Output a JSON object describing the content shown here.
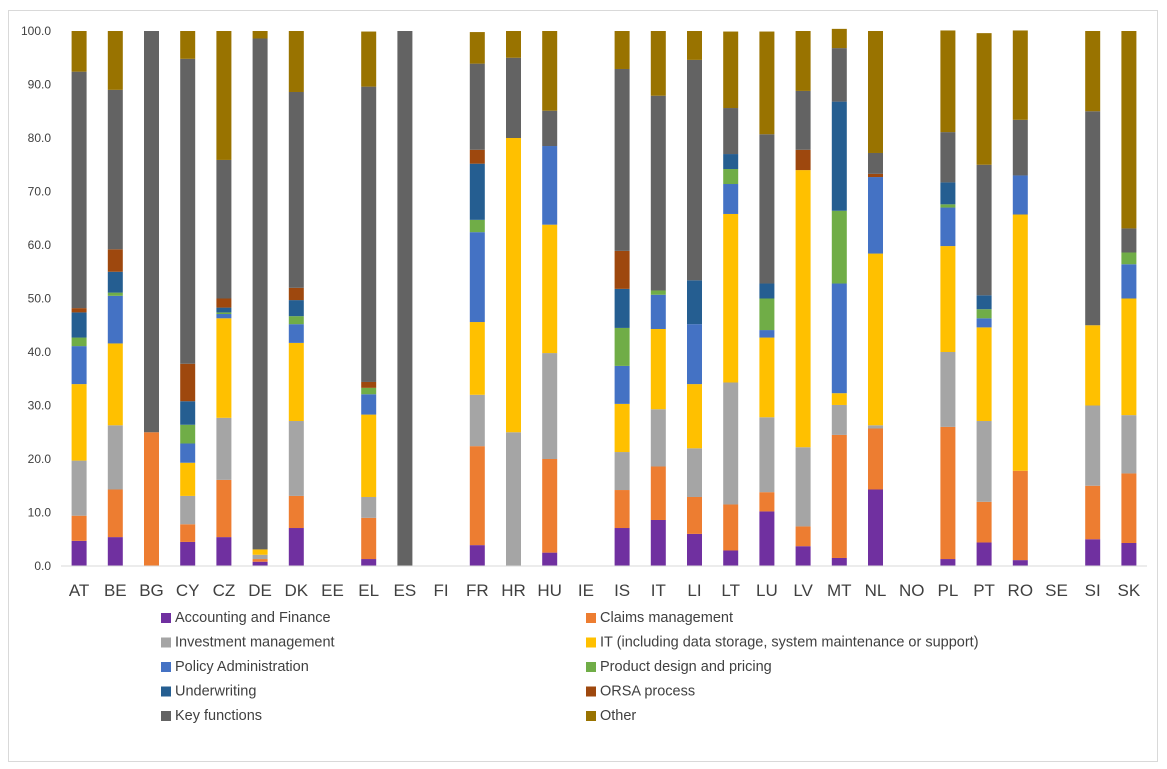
{
  "chart_data": {
    "type": "bar",
    "stacked": true,
    "title": "",
    "xlabel": "",
    "ylabel": "",
    "ylim": [
      0,
      100
    ],
    "ytick_step": 10,
    "ytick_labels": [
      "0.0",
      "10.0",
      "20.0",
      "30.0",
      "40.0",
      "50.0",
      "60.0",
      "70.0",
      "80.0",
      "90.0",
      "100.0"
    ],
    "grid": false,
    "legend_position": "bottom",
    "categories": [
      "AT",
      "BE",
      "BG",
      "CY",
      "CZ",
      "DE",
      "DK",
      "EE",
      "EL",
      "ES",
      "FI",
      "FR",
      "HR",
      "HU",
      "IE",
      "IS",
      "IT",
      "LI",
      "LT",
      "LU",
      "LV",
      "MT",
      "NL",
      "NO",
      "PL",
      "PT",
      "RO",
      "SE",
      "SI",
      "SK"
    ],
    "series": [
      {
        "name": "Accounting and Finance",
        "color": "#7030a0",
        "values": [
          4.7,
          5.4,
          0,
          4.5,
          5.4,
          0.8,
          7.1,
          0,
          1.3,
          0,
          0,
          3.9,
          0,
          2.5,
          0,
          7.1,
          8.6,
          6.0,
          2.9,
          10.2,
          3.7,
          1.5,
          14.3,
          0,
          1.3,
          4.4,
          1.1,
          0,
          5.0,
          4.3
        ]
      },
      {
        "name": "Claims management",
        "color": "#ed7d31",
        "values": [
          4.7,
          8.9,
          25.0,
          3.3,
          10.7,
          0.5,
          6.0,
          0,
          7.7,
          0,
          0,
          18.5,
          0,
          17.5,
          0,
          7.1,
          10.0,
          6.9,
          8.6,
          3.6,
          3.7,
          23.0,
          11.4,
          0,
          24.7,
          7.6,
          16.7,
          0,
          10.0,
          13.0
        ]
      },
      {
        "name": "Investment management",
        "color": "#a5a5a5",
        "values": [
          10.3,
          12.0,
          0,
          5.3,
          11.6,
          0.8,
          14.0,
          0,
          3.9,
          0,
          0,
          9.6,
          25.0,
          19.8,
          0,
          7.1,
          10.7,
          9.1,
          22.8,
          14.0,
          14.8,
          5.6,
          0.6,
          0,
          14.0,
          15.1,
          0,
          0,
          15.0,
          10.9
        ]
      },
      {
        "name": "IT (including data storage, system maintenance or support)",
        "color": "#ffc000",
        "values": [
          14.3,
          15.3,
          0,
          6.2,
          18.6,
          1.0,
          14.6,
          0,
          15.4,
          0,
          0,
          13.6,
          55.0,
          24.0,
          0,
          9.0,
          15.0,
          12.0,
          31.5,
          14.9,
          51.8,
          2.2,
          32.1,
          0,
          19.8,
          17.5,
          47.9,
          0,
          15.0,
          21.8
        ]
      },
      {
        "name": "Policy Administration",
        "color": "#4472c4",
        "values": [
          7.1,
          8.9,
          0,
          3.6,
          0.8,
          0,
          3.5,
          0,
          3.8,
          0,
          0,
          16.8,
          0,
          14.7,
          0,
          7.1,
          6.4,
          11.2,
          5.6,
          1.4,
          0,
          20.5,
          14.3,
          0,
          7.2,
          1.7,
          7.3,
          0,
          0,
          6.4
        ]
      },
      {
        "name": "Product design and pricing",
        "color": "#70ad47",
        "values": [
          1.6,
          0.6,
          0,
          3.5,
          0.3,
          0,
          1.5,
          0,
          1.2,
          0,
          0,
          2.3,
          0,
          0,
          0,
          7.1,
          0.8,
          0,
          2.8,
          5.9,
          0,
          13.6,
          0,
          0,
          0.6,
          1.7,
          0,
          0,
          0,
          2.2
        ]
      },
      {
        "name": "Underwriting",
        "color": "#255e91",
        "values": [
          4.7,
          3.9,
          0,
          4.4,
          0.9,
          0,
          3.0,
          0,
          0,
          0,
          0,
          10.5,
          0,
          0,
          0,
          7.3,
          0,
          8.2,
          2.8,
          2.8,
          0,
          20.4,
          0,
          0,
          4.1,
          2.6,
          0,
          0,
          0,
          0
        ]
      },
      {
        "name": "ORSA process",
        "color": "#9e480e",
        "values": [
          0.8,
          4.2,
          0,
          7.0,
          1.7,
          0,
          2.3,
          0,
          1.1,
          0,
          0,
          2.6,
          0,
          0,
          0,
          7.1,
          0,
          0,
          0,
          0,
          3.8,
          0,
          0.6,
          0,
          0,
          0,
          0,
          0,
          0,
          0
        ]
      },
      {
        "name": "Key functions",
        "color": "#636363",
        "values": [
          44.2,
          29.8,
          75.0,
          57.0,
          25.9,
          95.5,
          36.6,
          0,
          55.2,
          100.0,
          0,
          16.1,
          15.0,
          6.6,
          0,
          34.0,
          36.4,
          41.2,
          8.6,
          27.9,
          11.0,
          10.0,
          3.9,
          0,
          9.4,
          24.4,
          10.4,
          0,
          40.0,
          4.5
        ]
      },
      {
        "name": "Other",
        "color": "#997300",
        "values": [
          7.6,
          11.0,
          0,
          5.2,
          24.1,
          1.4,
          11.4,
          0,
          10.3,
          0,
          0,
          5.9,
          5.0,
          14.9,
          0,
          7.1,
          12.1,
          5.4,
          14.3,
          19.2,
          11.2,
          3.6,
          22.8,
          0,
          19.0,
          24.6,
          16.7,
          0,
          15.0,
          36.9
        ]
      }
    ]
  }
}
